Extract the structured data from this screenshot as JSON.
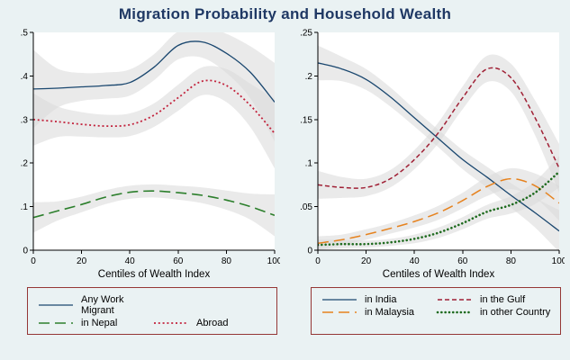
{
  "figure_title": "Migration Probability and Household Wealth",
  "colors": {
    "background": "#eaf2f3",
    "title_text": "#1f3864",
    "band": "#d9d9d9",
    "legend_border": "#953735",
    "axis": "#000000",
    "plot_background": "#ffffff"
  },
  "chart_data": [
    {
      "type": "line",
      "panel": "left",
      "x": [
        0,
        10,
        20,
        30,
        40,
        50,
        60,
        70,
        80,
        90,
        100
      ],
      "xlabel": "Centiles of Wealth Index",
      "xticks": [
        0,
        20,
        40,
        60,
        80,
        100
      ],
      "ylim": [
        0,
        0.5
      ],
      "yticks": [
        0,
        0.1,
        0.2,
        0.3,
        0.4,
        0.5
      ],
      "ytick_labels": [
        "0",
        ".1",
        ".2",
        ".3",
        ".4",
        ".5"
      ],
      "grid": false,
      "legend_position": "bottom",
      "legend_rows": [
        [
          0
        ],
        [
          1,
          2
        ]
      ],
      "series": [
        {
          "name": "Any Work Migrant",
          "color": "#1a476f",
          "dash": "solid",
          "width": 1.3,
          "values": [
            0.37,
            0.372,
            0.375,
            0.378,
            0.385,
            0.42,
            0.47,
            0.478,
            0.452,
            0.408,
            0.34
          ],
          "ci_hw": [
            0.09,
            0.045,
            0.032,
            0.03,
            0.03,
            0.03,
            0.032,
            0.036,
            0.045,
            0.06,
            0.09
          ]
        },
        {
          "name": "in Nepal",
          "color": "#2c7f2c",
          "dash": "longdash",
          "width": 1.6,
          "values": [
            0.075,
            0.09,
            0.105,
            0.122,
            0.133,
            0.136,
            0.132,
            0.126,
            0.115,
            0.1,
            0.08
          ],
          "ci_hw": [
            0.035,
            0.022,
            0.018,
            0.016,
            0.015,
            0.015,
            0.016,
            0.018,
            0.022,
            0.03,
            0.048
          ]
        },
        {
          "name": "Abroad",
          "color": "#c2223c",
          "dash": "dot",
          "width": 1.8,
          "values": [
            0.3,
            0.295,
            0.289,
            0.285,
            0.288,
            0.31,
            0.35,
            0.388,
            0.378,
            0.332,
            0.268
          ],
          "ci_hw": [
            0.06,
            0.035,
            0.028,
            0.026,
            0.026,
            0.027,
            0.03,
            0.032,
            0.038,
            0.05,
            0.08
          ]
        }
      ]
    },
    {
      "type": "line",
      "panel": "right",
      "x": [
        0,
        10,
        20,
        30,
        40,
        50,
        60,
        70,
        80,
        90,
        100
      ],
      "xlabel": "Centiles of Wealth Index",
      "xticks": [
        0,
        20,
        40,
        60,
        80,
        100
      ],
      "ylim": [
        0,
        0.25
      ],
      "yticks": [
        0,
        0.05,
        0.1,
        0.15,
        0.2,
        0.25
      ],
      "ytick_labels": [
        "0",
        ".05",
        ".1",
        ".15",
        ".2",
        ".25"
      ],
      "grid": false,
      "legend_position": "bottom",
      "legend_rows": [
        [
          0,
          1
        ],
        [
          2,
          3
        ]
      ],
      "series": [
        {
          "name": "in India",
          "color": "#1a476f",
          "dash": "solid",
          "width": 1.3,
          "values": [
            0.215,
            0.208,
            0.196,
            0.176,
            0.152,
            0.128,
            0.104,
            0.084,
            0.063,
            0.043,
            0.022
          ],
          "ci_hw": [
            0.02,
            0.014,
            0.012,
            0.011,
            0.01,
            0.01,
            0.011,
            0.012,
            0.014,
            0.017,
            0.024
          ]
        },
        {
          "name": "in the Gulf",
          "color": "#a02035",
          "dash": "shortdash",
          "width": 1.5,
          "values": [
            0.075,
            0.072,
            0.072,
            0.082,
            0.104,
            0.135,
            0.175,
            0.208,
            0.198,
            0.152,
            0.094
          ],
          "ci_hw": [
            0.016,
            0.012,
            0.01,
            0.01,
            0.011,
            0.012,
            0.013,
            0.015,
            0.016,
            0.02,
            0.028
          ]
        },
        {
          "name": "in Malaysia",
          "color": "#e6821e",
          "dash": "longdash",
          "width": 1.5,
          "values": [
            0.008,
            0.012,
            0.018,
            0.025,
            0.033,
            0.043,
            0.057,
            0.073,
            0.082,
            0.074,
            0.054
          ],
          "ci_hw": [
            0.008,
            0.006,
            0.006,
            0.006,
            0.007,
            0.008,
            0.009,
            0.011,
            0.012,
            0.014,
            0.02
          ]
        },
        {
          "name": "in other Country",
          "color": "#1f6b1f",
          "dash": "markerdot",
          "width": 2.6,
          "values": [
            0.006,
            0.007,
            0.007,
            0.009,
            0.013,
            0.02,
            0.031,
            0.044,
            0.052,
            0.066,
            0.09
          ],
          "ci_hw": [
            0.006,
            0.005,
            0.004,
            0.004,
            0.005,
            0.006,
            0.007,
            0.008,
            0.01,
            0.013,
            0.018
          ]
        }
      ]
    }
  ]
}
